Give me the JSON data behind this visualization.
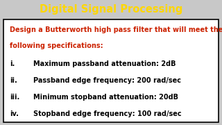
{
  "title": "Digital Signal Processing",
  "title_color": "#FFD700",
  "title_bg": "#000000",
  "body_bg": "#FFFFFF",
  "outer_bg": "#C8C8C8",
  "border_color": "#000000",
  "intro_line1": "Design a Butterworth high pass filter that will meet the",
  "intro_line2": "following specifications:",
  "intro_color": "#CC2200",
  "items": [
    {
      "num": "i.",
      "text": "Maximum passband attenuation: 2dB"
    },
    {
      "num": "ii.",
      "text": "Passband edge frequency: 200 rad/sec"
    },
    {
      "num": "iii.",
      "text": "Minimum stopband attenuation: 20dB"
    },
    {
      "num": "iv.",
      "text": "Stopband edge frequency: 100 rad/sec"
    }
  ],
  "item_color": "#000000",
  "title_fontsize": 10.5,
  "intro_fontsize": 7.0,
  "item_fontsize": 7.0
}
